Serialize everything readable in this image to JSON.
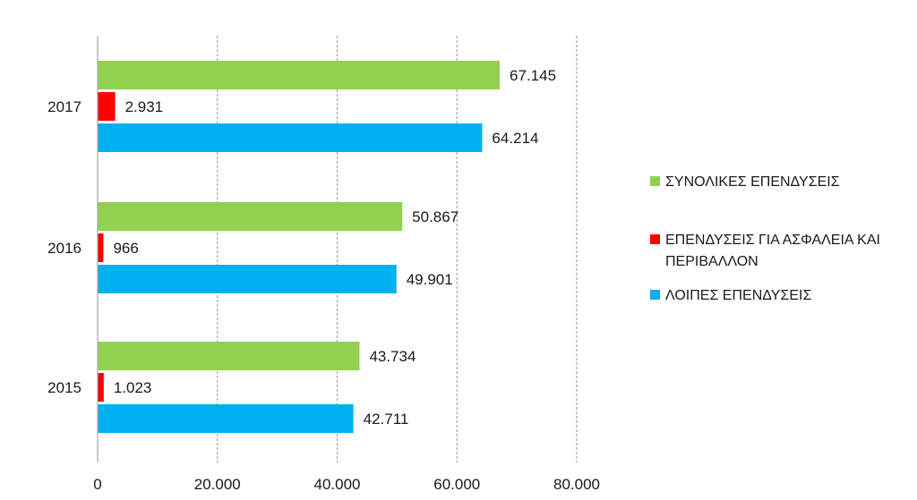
{
  "chart_data": {
    "type": "bar",
    "orientation": "horizontal",
    "categories": [
      "2015",
      "2016",
      "2017"
    ],
    "category_order": "bottom-to-top",
    "xlim": [
      0,
      80000
    ],
    "x_ticks": [
      0,
      20000,
      40000,
      60000,
      80000
    ],
    "x_tick_labels": [
      "0",
      "20.000",
      "40.000",
      "60.000",
      "80.000"
    ],
    "grid": "vertical-dashed",
    "legend_position": "right",
    "series": [
      {
        "name": "ΣΥΝΟΛΙΚΕΣ ΕΠΕΝΔΥΣΕΙΣ",
        "color": "#92D050",
        "values": [
          43734,
          50867,
          67145
        ],
        "labels": [
          "43.734",
          "50.867",
          "67.145"
        ]
      },
      {
        "name": "ΕΠΕΝΔΥΣΕΙΣ ΓΙΑ ΑΣΦΑΛΕΙΑ ΚΑΙ ΠΕΡΙΒΑΛΛΟΝ",
        "name_lines": [
          "ΕΠΕΝΔΥΣΕΙΣ ΓΙΑ ΑΣΦΑΛΕΙΑ ΚΑΙ",
          "ΠΕΡΙΒΑΛΛΟΝ"
        ],
        "color": "#FF0000",
        "values": [
          1023,
          966,
          2931
        ],
        "labels": [
          "1.023",
          "966",
          "2.931"
        ]
      },
      {
        "name": "ΛΟΙΠΕΣ ΕΠΕΝΔΥΣΕΙΣ",
        "color": "#00B0F0",
        "values": [
          42711,
          49901,
          64214
        ],
        "labels": [
          "42.711",
          "49.901",
          "64.214"
        ]
      }
    ]
  }
}
